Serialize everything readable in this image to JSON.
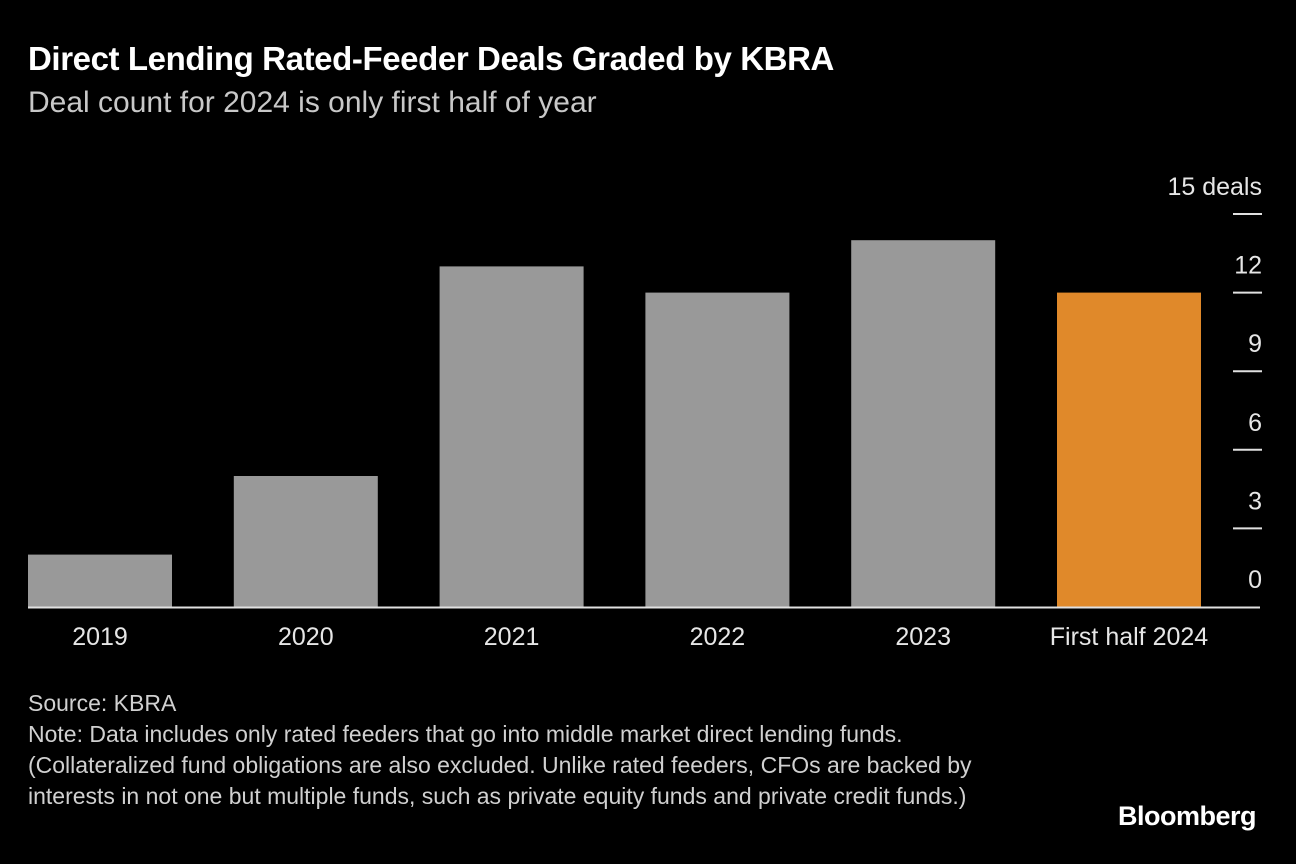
{
  "header": {
    "title": "Direct Lending Rated-Feeder Deals Graded by KBRA",
    "subtitle": "Deal count for 2024 is only first half of year"
  },
  "chart_data": {
    "type": "bar",
    "categories": [
      "2019",
      "2020",
      "2021",
      "2022",
      "2023",
      "First half 2024"
    ],
    "values": [
      2,
      5,
      13,
      12,
      14,
      12
    ],
    "colors": [
      "#999999",
      "#999999",
      "#999999",
      "#999999",
      "#999999",
      "#e0892a"
    ],
    "ylim": [
      0,
      15
    ],
    "y_ticks": [
      0,
      3,
      6,
      9,
      12,
      15
    ],
    "y_tick_labels": [
      "0",
      "3",
      "6",
      "9",
      "12",
      "15 deals"
    ],
    "y_axis_position": "right",
    "grid": false
  },
  "footer": {
    "source": "Source: KBRA",
    "note": "Note: Data includes only rated feeders that go into middle market direct lending funds. (Collateralized fund obligations are also excluded. Unlike rated feeders, CFOs are backed by interests in not one but multiple funds, such as private equity funds and private credit funds.)"
  },
  "brand": "Bloomberg"
}
